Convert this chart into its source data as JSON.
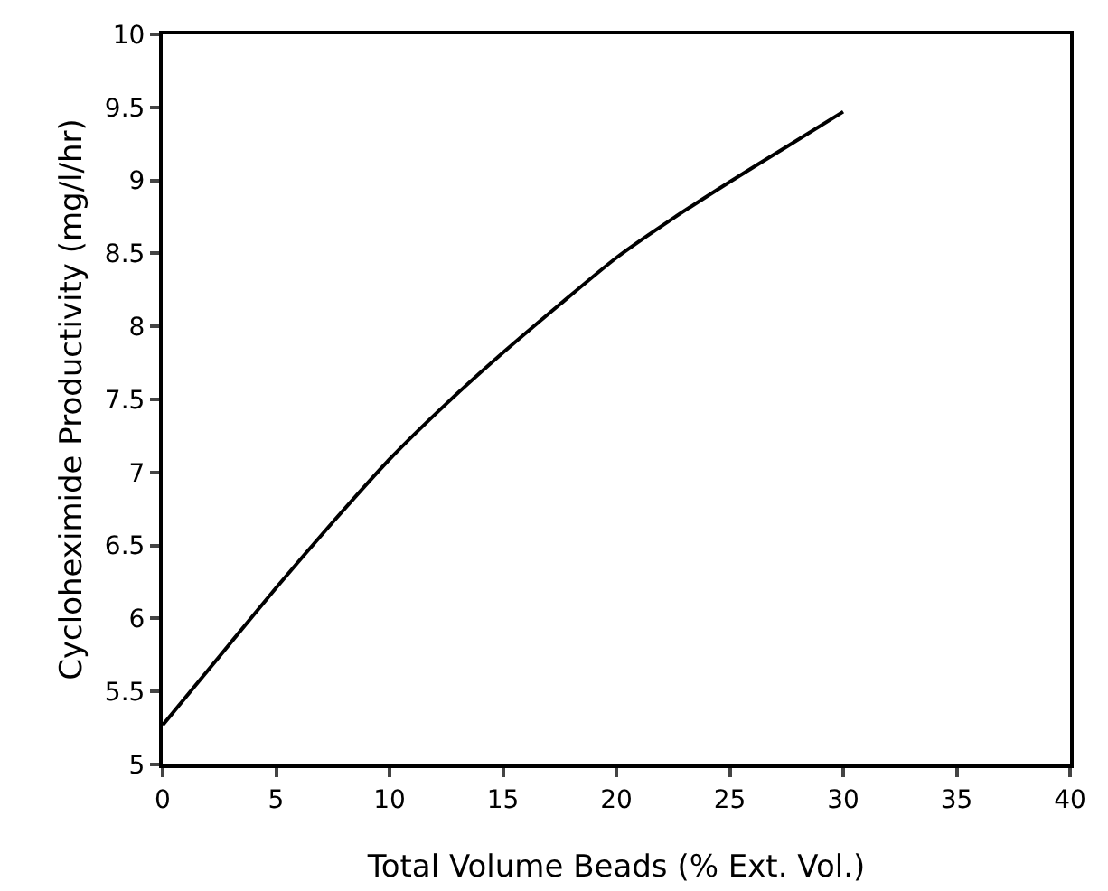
{
  "chart_data": {
    "type": "line",
    "xlabel": "Total Volume Beads (% Ext. Vol.)",
    "ylabel": "Cycloheximide Productivity (mg/l/hr)",
    "x": [
      0,
      2.5,
      5,
      7.5,
      10,
      12.5,
      15,
      17.5,
      20,
      22.5,
      25,
      27.5,
      30
    ],
    "series": [
      {
        "color": "#000000",
        "values": [
          5.27,
          5.74,
          6.21,
          6.66,
          7.09,
          7.47,
          7.82,
          8.15,
          8.47,
          8.74,
          8.99,
          9.23,
          9.47
        ]
      }
    ],
    "xlim": [
      0,
      40
    ],
    "xticks": [
      0,
      5,
      10,
      15,
      20,
      25,
      30,
      35,
      40
    ],
    "ylim": [
      5,
      10
    ],
    "yticks": [
      5,
      5.5,
      6,
      6.5,
      7,
      7.5,
      8,
      8.5,
      9,
      9.5,
      10
    ],
    "grid": false,
    "marker": "none",
    "line_style": "solid"
  }
}
